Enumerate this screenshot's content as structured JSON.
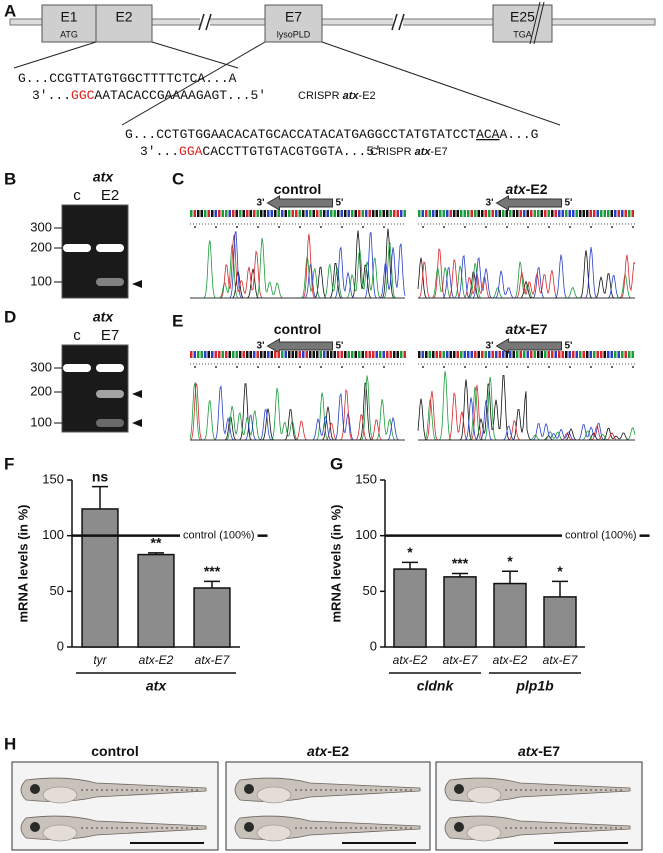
{
  "panel_labels": [
    "A",
    "B",
    "C",
    "D",
    "E",
    "F",
    "G",
    "H"
  ],
  "gene_map": {
    "exons": [
      {
        "label": "E1",
        "sublabel": "ATG"
      },
      {
        "label": "E2"
      },
      {
        "label": "E7",
        "sublabel": "lysoPLD"
      },
      {
        "label": "E25",
        "sublabel": "TGA"
      }
    ]
  },
  "sequences": [
    {
      "target": [
        "G...CCGTTATGTGGCTTTTCTCA...A"
      ],
      "guide_prefix": "3'...",
      "pam": "GGC",
      "guide_rest": "AATACACCGAAAAGAGT...5'",
      "name_prefix": "CRISPR ",
      "name_gene": "atx",
      "name_suffix": "-E2"
    },
    {
      "target": [
        "G...CCTGTGGAACACATGCACCATACATGAGGCCTATGTATCCT",
        "ACA",
        "A...G"
      ],
      "guide_prefix": "3'...",
      "pam": "GGA",
      "guide_rest": "CACCTTGTGTACGTGGTA...5'",
      "name_prefix": "CRISPR ",
      "name_gene": "atx",
      "name_suffix": "-E7"
    }
  ],
  "gels": [
    {
      "gene": "atx",
      "lanes": [
        "c",
        "E2"
      ],
      "ladder": [
        300,
        200,
        100
      ]
    },
    {
      "gene": "atx",
      "lanes": [
        "c",
        "E7"
      ],
      "ladder": [
        300,
        200,
        100
      ]
    }
  ],
  "chromatograms": [
    {
      "panels": [
        {
          "gene": "",
          "suffix": "control"
        },
        {
          "gene": "atx",
          "suffix": "-E2"
        }
      ],
      "arrow_left": "3'",
      "arrow_right": "5'"
    },
    {
      "panels": [
        {
          "gene": "",
          "suffix": "control"
        },
        {
          "gene": "atx",
          "suffix": "-E7"
        }
      ],
      "arrow_left": "3'",
      "arrow_right": "5'"
    }
  ],
  "chart_data": [
    {
      "type": "bar",
      "y_label": "mRNA levels (in %)",
      "categories": [
        "tyr",
        "atx-E2",
        "atx-E7"
      ],
      "values": [
        124,
        83,
        53
      ],
      "errors": [
        20,
        1.5,
        6
      ],
      "significance": [
        "ns",
        "**",
        "***"
      ],
      "groups": [
        "atx"
      ],
      "reference_line": {
        "value": 100,
        "label": "control (100%)"
      },
      "ylim": [
        0,
        150
      ],
      "yticks": [
        0,
        50,
        100,
        150
      ],
      "color": "#8c8c8c"
    },
    {
      "type": "bar",
      "y_label": "mRNA levels (in %)",
      "categories": [
        "atx-E2",
        "atx-E7",
        "atx-E2",
        "atx-E7"
      ],
      "values": [
        70,
        63,
        57,
        45
      ],
      "errors": [
        6,
        3,
        11,
        14
      ],
      "significance": [
        "*",
        "***",
        "*",
        "*"
      ],
      "groups": [
        "cldnk",
        "plp1b"
      ],
      "reference_line": {
        "value": 100,
        "label": "control (100%)"
      },
      "ylim": [
        0,
        150
      ],
      "yticks": [
        0,
        50,
        100,
        150
      ],
      "color": "#8c8c8c"
    }
  ],
  "larvae": {
    "titles": [
      {
        "gene": "",
        "suffix": "control"
      },
      {
        "gene": "atx",
        "suffix": "-E2"
      },
      {
        "gene": "atx",
        "suffix": "-E7"
      }
    ]
  }
}
